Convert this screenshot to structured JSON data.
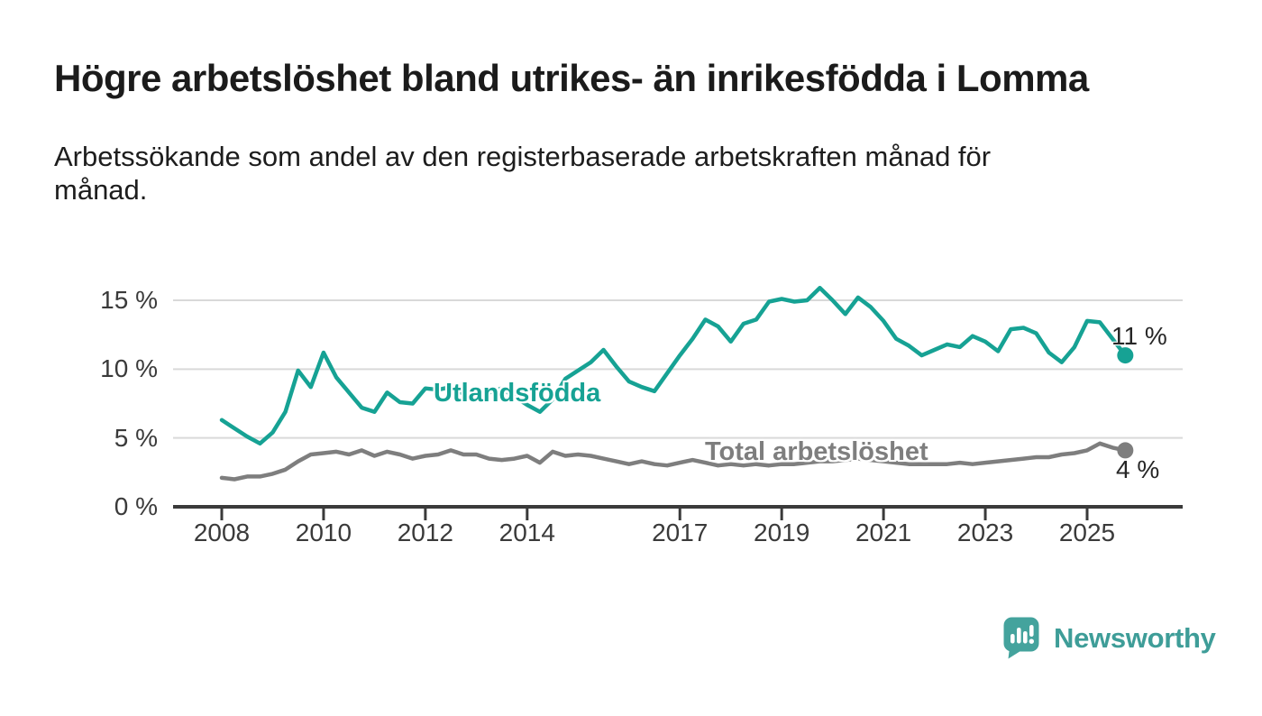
{
  "header": {
    "title": "Högre arbetslöshet bland utrikes- än inrikesfödda i Lomma",
    "subtitle_line1": "Arbetssökande som andel av den registerbaserade arbetskraften månad för",
    "subtitle_line2": "månad."
  },
  "chart_data": {
    "type": "line",
    "unit": "%",
    "title": "Högre arbetslöshet bland utrikes- än inrikesfödda i Lomma",
    "subtitle": "Arbetssökande som andel av den registerbaserade arbetskraften månad för månad.",
    "grid": "horizontal-only",
    "x_axis": {
      "start_year": 2008,
      "step_years": 0.25,
      "end_year": 2025.75,
      "ticks": [
        {
          "year": 2008,
          "label": "2008"
        },
        {
          "year": 2010,
          "label": "2010"
        },
        {
          "year": 2012,
          "label": "2012"
        },
        {
          "year": 2014,
          "label": "2014"
        },
        {
          "year": 2017,
          "label": "2017"
        },
        {
          "year": 2019,
          "label": "2019"
        },
        {
          "year": 2021,
          "label": "2021"
        },
        {
          "year": 2023,
          "label": "2023"
        },
        {
          "year": 2025,
          "label": "2025"
        }
      ]
    },
    "y_axis": {
      "range": [
        0,
        16.5
      ],
      "ticks": [
        {
          "value": 0,
          "label": "0 %"
        },
        {
          "value": 5,
          "label": "5 %"
        },
        {
          "value": 10,
          "label": "10 %"
        },
        {
          "value": 15,
          "label": "15 %"
        }
      ]
    },
    "series": [
      {
        "name": "Utlandsfödda",
        "label": "Utlandsfödda",
        "color": "#16a294",
        "end_value": 11,
        "end_label": "11 %",
        "values": [
          6.3,
          5.7,
          5.1,
          4.6,
          5.4,
          6.9,
          9.9,
          8.7,
          11.2,
          9.4,
          8.3,
          7.2,
          6.9,
          8.3,
          7.6,
          7.5,
          8.6,
          8.5,
          8.7,
          8.2,
          8.5,
          8.3,
          8.6,
          8.0,
          7.4,
          6.9,
          7.8,
          9.3,
          9.9,
          10.5,
          11.4,
          10.2,
          9.1,
          8.7,
          8.4,
          9.7,
          11.0,
          12.2,
          13.6,
          13.1,
          12.0,
          13.3,
          13.6,
          14.9,
          15.1,
          14.9,
          15.0,
          15.9,
          15.0,
          14.0,
          15.2,
          14.5,
          13.5,
          12.2,
          11.7,
          11.0,
          11.4,
          11.8,
          11.6,
          12.4,
          12.0,
          11.3,
          12.9,
          13.0,
          12.6,
          11.2,
          10.5,
          11.6,
          13.5,
          13.4,
          12.2,
          11.0
        ]
      },
      {
        "name": "Total arbetslöshet",
        "label": "Total arbetslöshet",
        "color": "#7e7e7e",
        "end_value": 4,
        "end_label": "4 %",
        "values": [
          2.1,
          2.0,
          2.2,
          2.2,
          2.4,
          2.7,
          3.3,
          3.8,
          3.9,
          4.0,
          3.8,
          4.1,
          3.7,
          4.0,
          3.8,
          3.5,
          3.7,
          3.8,
          4.1,
          3.8,
          3.8,
          3.5,
          3.4,
          3.5,
          3.7,
          3.2,
          4.0,
          3.7,
          3.8,
          3.7,
          3.5,
          3.3,
          3.1,
          3.3,
          3.1,
          3.0,
          3.2,
          3.4,
          3.2,
          3.0,
          3.1,
          3.0,
          3.1,
          3.0,
          3.1,
          3.1,
          3.2,
          3.3,
          3.3,
          3.4,
          3.5,
          3.4,
          3.3,
          3.2,
          3.1,
          3.1,
          3.1,
          3.1,
          3.2,
          3.1,
          3.2,
          3.3,
          3.4,
          3.5,
          3.6,
          3.6,
          3.8,
          3.9,
          4.1,
          4.6,
          4.3,
          4.1
        ]
      }
    ]
  },
  "branding": {
    "logo_text": "Newsworthy",
    "logo_text_color": "#3e9d98",
    "logo_mark_color": "#44a39d",
    "logo_icon": "bar-chart-speech-bubble"
  }
}
